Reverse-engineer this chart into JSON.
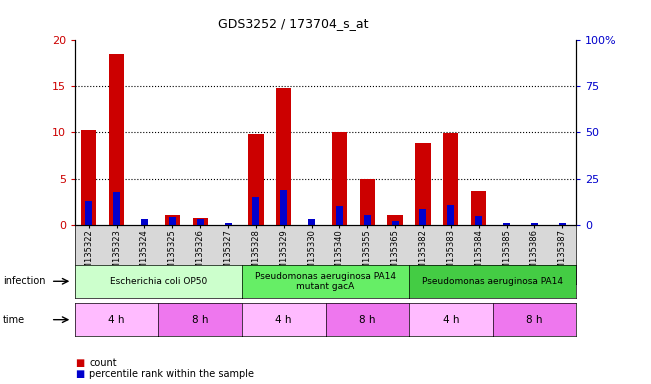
{
  "title": "GDS3252 / 173704_s_at",
  "samples": [
    "GSM135322",
    "GSM135323",
    "GSM135324",
    "GSM135325",
    "GSM135326",
    "GSM135327",
    "GSM135328",
    "GSM135329",
    "GSM135330",
    "GSM135340",
    "GSM135355",
    "GSM135365",
    "GSM135382",
    "GSM135383",
    "GSM135384",
    "GSM135385",
    "GSM135386",
    "GSM135387"
  ],
  "counts": [
    10.3,
    18.5,
    0,
    1.0,
    0.7,
    0,
    9.8,
    14.8,
    0,
    10.0,
    5.0,
    1.1,
    8.9,
    9.9,
    3.7,
    0,
    0,
    0
  ],
  "percentiles_scaled": [
    2.6,
    3.5,
    0.6,
    0.8,
    0.6,
    0.2,
    3.0,
    3.8,
    0.6,
    2.0,
    1.1,
    0.4,
    1.7,
    2.1,
    0.9,
    0.2,
    0.2,
    0.2
  ],
  "ylim_left": [
    0,
    20
  ],
  "ylim_right": [
    0,
    100
  ],
  "yticks_left": [
    0,
    5,
    10,
    15,
    20
  ],
  "yticks_right": [
    0,
    25,
    50,
    75,
    100
  ],
  "ytick_labels_right": [
    "0",
    "25",
    "50",
    "75",
    "100%"
  ],
  "bar_color": "#cc0000",
  "percentile_color": "#0000cc",
  "tick_label_color": "#cc0000",
  "right_tick_color": "#0000cc",
  "infection_groups": [
    {
      "label": "Escherichia coli OP50",
      "start": 0,
      "end": 6,
      "color": "#ccffcc"
    },
    {
      "label": "Pseudomonas aeruginosa PA14\nmutant gacA",
      "start": 6,
      "end": 12,
      "color": "#66ee66"
    },
    {
      "label": "Pseudomonas aeruginosa PA14",
      "start": 12,
      "end": 18,
      "color": "#44cc44"
    }
  ],
  "time_groups": [
    {
      "label": "4 h",
      "start": 0,
      "end": 3,
      "color": "#ffbbff"
    },
    {
      "label": "8 h",
      "start": 3,
      "end": 6,
      "color": "#ee77ee"
    },
    {
      "label": "4 h",
      "start": 6,
      "end": 9,
      "color": "#ffbbff"
    },
    {
      "label": "8 h",
      "start": 9,
      "end": 12,
      "color": "#ee77ee"
    },
    {
      "label": "4 h",
      "start": 12,
      "end": 15,
      "color": "#ffbbff"
    },
    {
      "label": "8 h",
      "start": 15,
      "end": 18,
      "color": "#ee77ee"
    }
  ],
  "legend_count_color": "#cc0000",
  "legend_percentile_color": "#0000cc",
  "xtick_bg_color": "#d8d8d8"
}
